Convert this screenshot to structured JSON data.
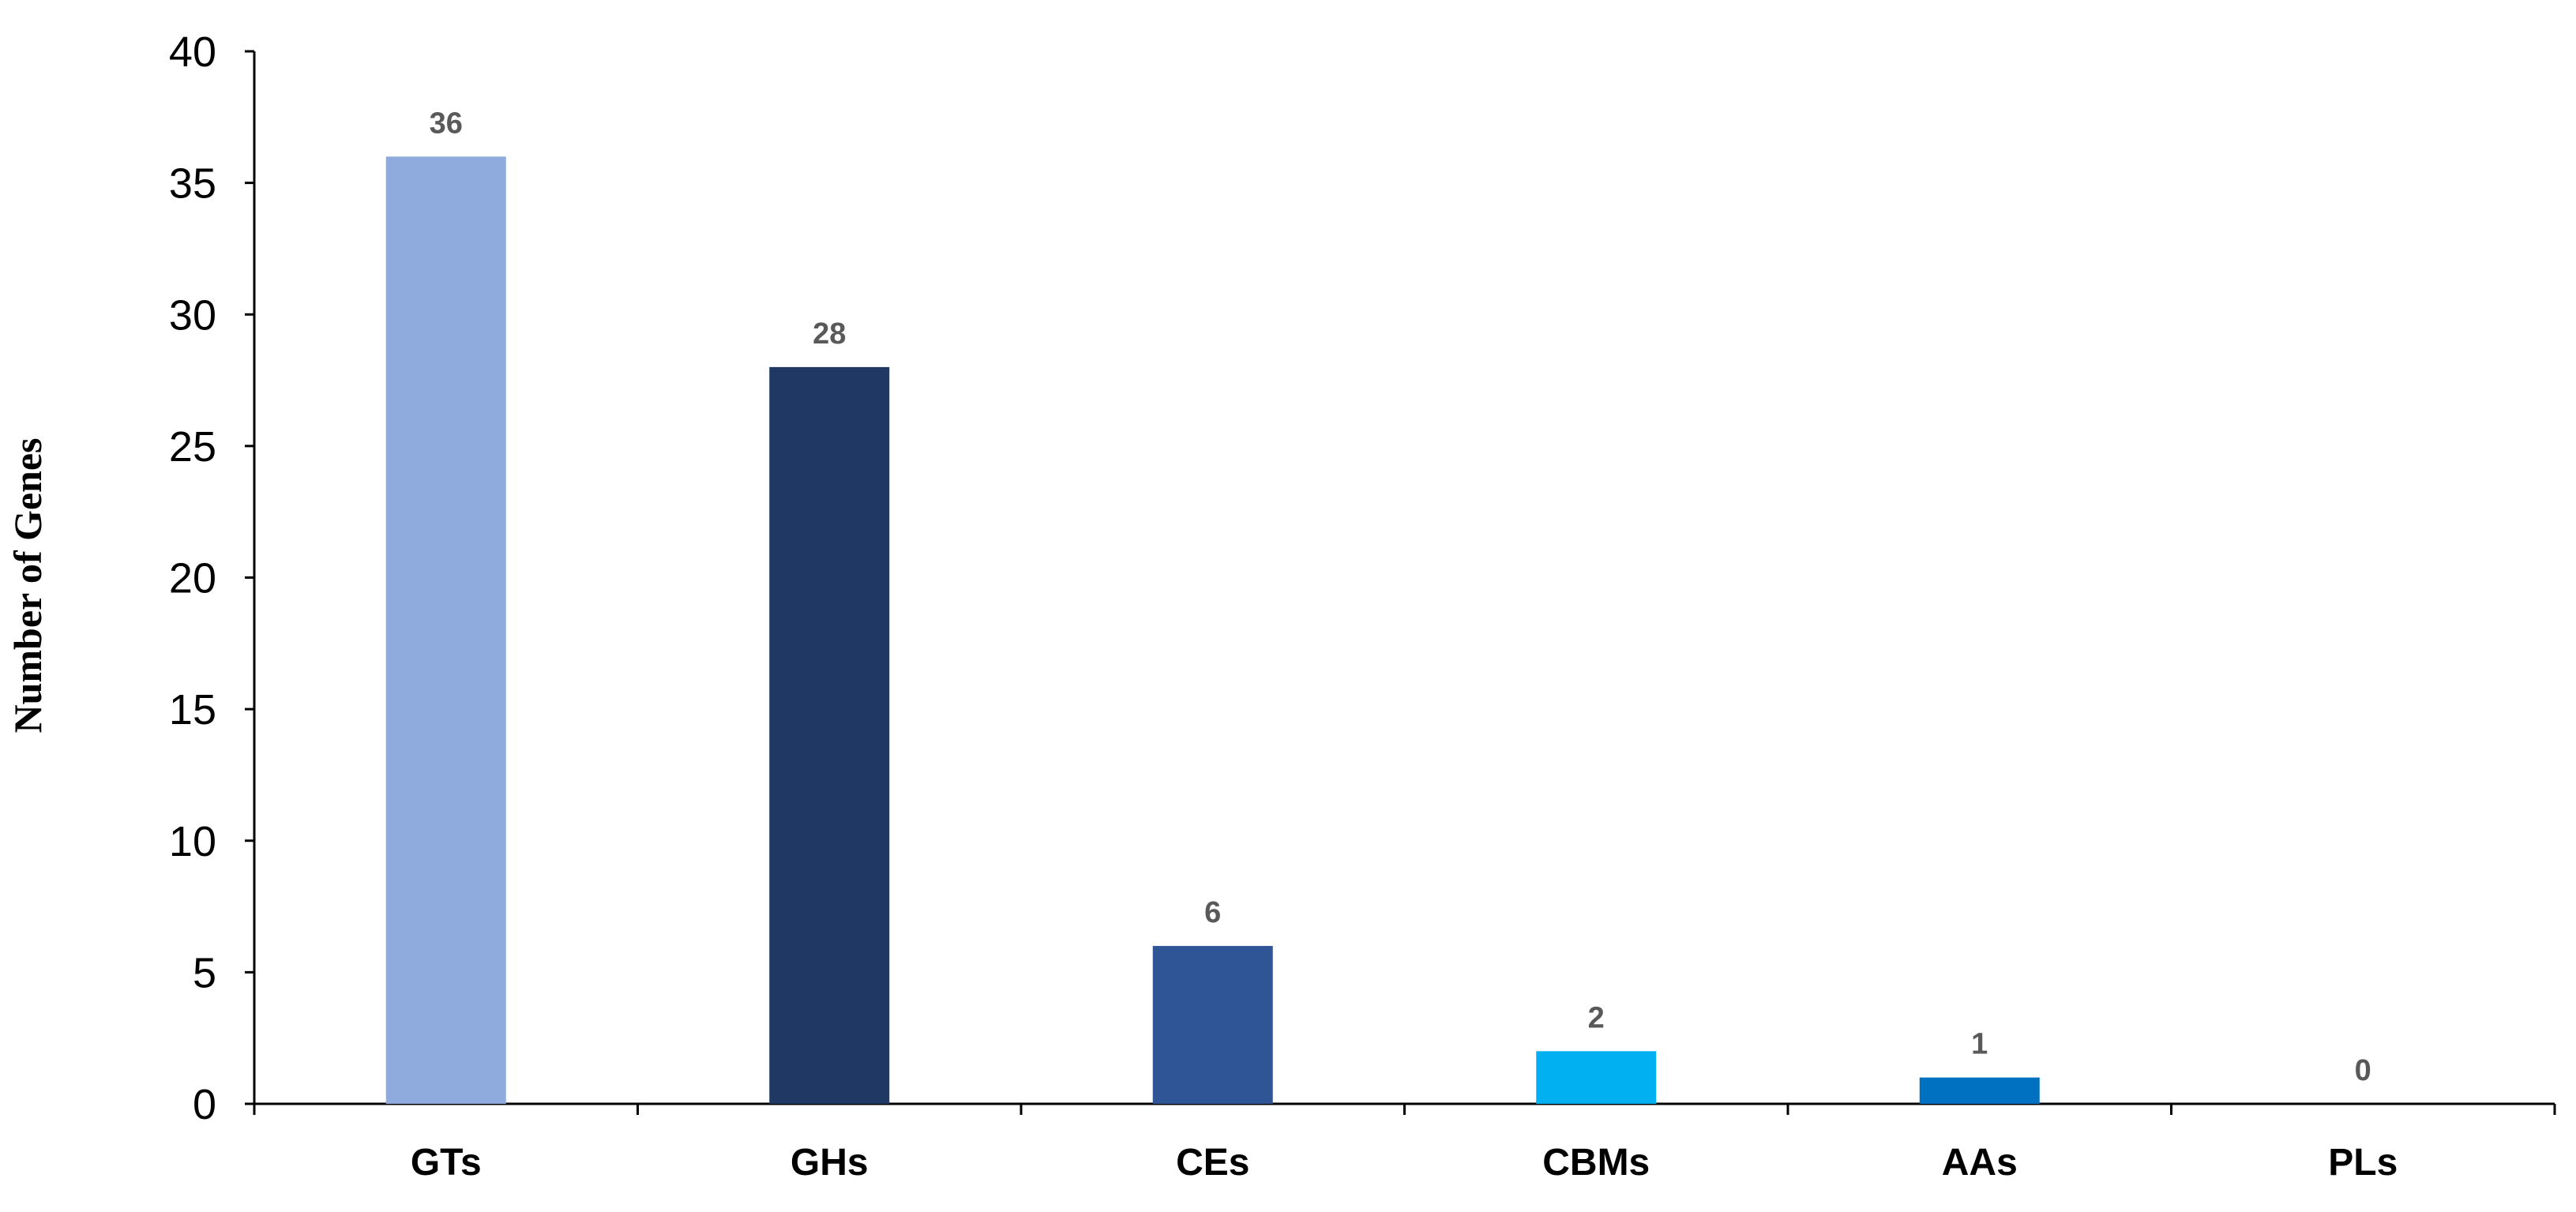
{
  "chart_data": {
    "type": "bar",
    "categories": [
      "GTs",
      "GHs",
      "CEs",
      "CBMs",
      "AAs",
      "PLs"
    ],
    "values": [
      36,
      28,
      6,
      2,
      1,
      0
    ],
    "data_labels": [
      "36",
      "28",
      "6",
      "2",
      "1",
      "0"
    ],
    "colors": [
      "#8FAADC",
      "#1F3864",
      "#2F5597",
      "#00B0F0",
      "#0070C0",
      "#0070C0"
    ],
    "title": "",
    "xlabel": "",
    "ylabel": "Number of Genes",
    "ylim": [
      0,
      40
    ],
    "yticks": [
      0,
      5,
      10,
      15,
      20,
      25,
      30,
      35,
      40
    ],
    "ytick_labels": [
      "0",
      "5",
      "10",
      "15",
      "20",
      "25",
      "30",
      "35",
      "40"
    ],
    "grid": false,
    "legend": "none"
  }
}
